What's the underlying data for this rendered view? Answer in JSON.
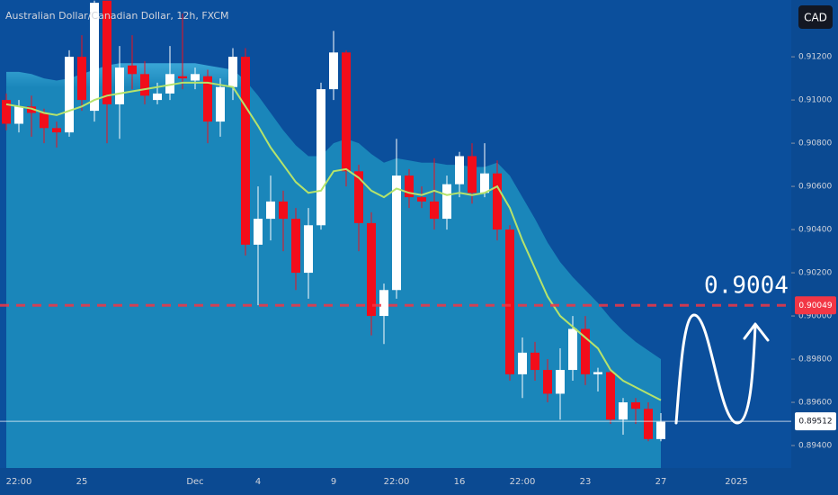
{
  "chart_data": {
    "type": "candlestick",
    "title": "Australian Dollar/Canadian Dollar, 12h, FXCM",
    "currency": "CAD",
    "up_color": "#ffffff",
    "down_color": "#f20d1a",
    "categories": [
      null,
      "22:00",
      null,
      null,
      null,
      null,
      "25",
      null,
      null,
      null,
      null,
      null,
      null,
      null,
      null,
      "Dec",
      null,
      null,
      null,
      null,
      "4",
      null,
      null,
      null,
      null,
      null,
      "9",
      null,
      null,
      null,
      null,
      "22:00",
      null,
      null,
      null,
      null,
      "16",
      null,
      null,
      null,
      null,
      "22:00",
      null,
      null,
      null,
      null,
      "23",
      null,
      null,
      null,
      null,
      null,
      "27",
      null,
      null,
      null,
      null,
      null,
      "2025"
    ],
    "open": [
      0.91,
      0.9089,
      0.9097,
      0.9094,
      0.9087,
      0.9085,
      0.912,
      0.9095,
      0.9146,
      0.9098,
      0.9116,
      0.9112,
      0.91,
      0.9103,
      0.9111,
      0.9109,
      0.9111,
      0.909,
      0.9106,
      0.912,
      0.9033,
      0.9045,
      0.9053,
      0.9045,
      0.902,
      0.9042,
      0.9105,
      0.9122,
      0.9067,
      0.9043,
      0.9,
      0.9012,
      0.9065,
      0.9055,
      0.9053,
      0.9045,
      0.9061,
      0.9074,
      0.9057,
      0.9066,
      0.904,
      0.8973,
      0.8983,
      0.8975,
      0.8964,
      0.8975,
      0.8994,
      0.8973,
      0.8974,
      0.8952,
      0.896,
      0.8957,
      0.8943,
      null,
      null,
      null,
      null,
      null,
      null
    ],
    "high": [
      0.9103,
      0.91,
      0.9102,
      0.9096,
      0.909,
      0.9123,
      0.913,
      0.9146,
      0.9146,
      0.9125,
      0.913,
      0.9118,
      0.9108,
      0.9125,
      0.914,
      0.9115,
      0.9114,
      0.911,
      0.9124,
      0.9124,
      0.906,
      0.9065,
      0.9058,
      0.905,
      0.905,
      0.9108,
      0.9132,
      0.9123,
      0.907,
      0.9048,
      0.9015,
      0.9082,
      0.9068,
      0.906,
      0.9073,
      0.9065,
      0.9076,
      0.908,
      0.908,
      0.9072,
      0.9042,
      0.899,
      0.8988,
      0.898,
      0.8985,
      0.9,
      0.9,
      0.8976,
      0.8976,
      0.8962,
      0.8962,
      0.896,
      0.8955,
      null,
      null,
      null,
      null,
      null,
      null
    ],
    "low": [
      0.9086,
      0.9085,
      0.9083,
      0.908,
      0.9078,
      0.9083,
      0.9095,
      0.909,
      0.908,
      0.9082,
      0.9105,
      0.9098,
      0.9098,
      0.91,
      0.9105,
      0.9105,
      0.908,
      0.9083,
      0.91,
      0.9028,
      0.9005,
      0.9035,
      0.903,
      0.9012,
      0.9008,
      0.904,
      0.91,
      0.906,
      0.903,
      0.8991,
      0.8987,
      0.9008,
      0.905,
      0.905,
      0.904,
      0.904,
      0.9055,
      0.9052,
      0.9055,
      0.9035,
      0.897,
      0.8962,
      0.897,
      0.896,
      0.8952,
      0.897,
      0.8968,
      0.8965,
      0.895,
      0.8945,
      0.895,
      0.8942,
      0.8942,
      null,
      null,
      null,
      null,
      null,
      null
    ],
    "close": [
      0.9089,
      0.9097,
      0.9094,
      0.9087,
      0.9085,
      0.912,
      0.91,
      0.9145,
      0.9098,
      0.9115,
      0.9112,
      0.9102,
      0.9103,
      0.9112,
      0.911,
      0.9112,
      0.909,
      0.9106,
      0.912,
      0.9033,
      0.9045,
      0.9053,
      0.9045,
      0.902,
      0.9042,
      0.9105,
      0.9122,
      0.9067,
      0.9043,
      0.9,
      0.9012,
      0.9065,
      0.9055,
      0.9053,
      0.9045,
      0.9061,
      0.9074,
      0.9057,
      0.9066,
      0.904,
      0.8973,
      0.8983,
      0.8975,
      0.8964,
      0.8975,
      0.8994,
      0.8973,
      0.8974,
      0.8952,
      0.896,
      0.8957,
      0.8943,
      0.8951,
      null,
      null,
      null,
      null,
      null,
      null
    ],
    "ma": {
      "color": "#b5e36b",
      "values": [
        0.9098,
        0.9097,
        0.9096,
        0.9094,
        0.9093,
        0.9095,
        0.9097,
        0.91,
        0.9102,
        0.9103,
        0.9104,
        0.9105,
        0.9106,
        0.9107,
        0.9108,
        0.9108,
        0.9108,
        0.9107,
        0.9106,
        0.9097,
        0.9088,
        0.9078,
        0.907,
        0.9062,
        0.9057,
        0.9058,
        0.9067,
        0.9068,
        0.9064,
        0.9058,
        0.9055,
        0.9059,
        0.9057,
        0.9056,
        0.9058,
        0.9056,
        0.9057,
        0.9056,
        0.9057,
        0.906,
        0.905,
        0.9035,
        0.9022,
        0.9009,
        0.9,
        0.8995,
        0.899,
        0.8985,
        0.8975,
        0.897,
        0.8967,
        0.8964,
        0.8961,
        null,
        null,
        null,
        null,
        null,
        null
      ]
    },
    "cloud": {
      "color": "#1a86ba",
      "values": [
        0.9113,
        0.9113,
        0.9112,
        0.911,
        0.9109,
        0.911,
        0.9112,
        0.9114,
        0.9116,
        0.9117,
        0.9117,
        0.9117,
        0.9117,
        0.9117,
        0.9117,
        0.9117,
        0.9116,
        0.9115,
        0.9114,
        0.9109,
        0.9102,
        0.9094,
        0.9086,
        0.9079,
        0.9074,
        0.9074,
        0.908,
        0.9082,
        0.908,
        0.9075,
        0.9071,
        0.9073,
        0.9072,
        0.9071,
        0.9071,
        0.907,
        0.907,
        0.9069,
        0.9069,
        0.9071,
        0.9065,
        0.9055,
        0.9045,
        0.9034,
        0.9025,
        0.9018,
        0.9012,
        0.9006,
        0.8999,
        0.8993,
        0.8988,
        0.8984,
        0.898,
        null,
        null,
        null,
        null,
        null,
        null
      ]
    },
    "ylim": [
      0.89296,
      0.91463
    ],
    "yticks": [
      {
        "value": 0.894,
        "label": "0.89400"
      },
      {
        "value": 0.896,
        "label": "0.89600"
      },
      {
        "value": 0.898,
        "label": "0.89800"
      },
      {
        "value": 0.9,
        "label": "0.90000"
      },
      {
        "value": 0.902,
        "label": "0.90200"
      },
      {
        "value": 0.904,
        "label": "0.90400"
      },
      {
        "value": 0.906,
        "label": "0.90600"
      },
      {
        "value": 0.908,
        "label": "0.90800"
      },
      {
        "value": 0.91,
        "label": "0.91000"
      },
      {
        "value": 0.912,
        "label": "0.91200"
      }
    ],
    "price_lines": [
      {
        "value": 0.90049,
        "label": "0.90049",
        "color": "#f23645",
        "dashed": true
      },
      {
        "value": 0.89512,
        "label": "0.89512",
        "color": "#ffffff",
        "dashed": false
      }
    ],
    "annotation": "0.9004"
  }
}
